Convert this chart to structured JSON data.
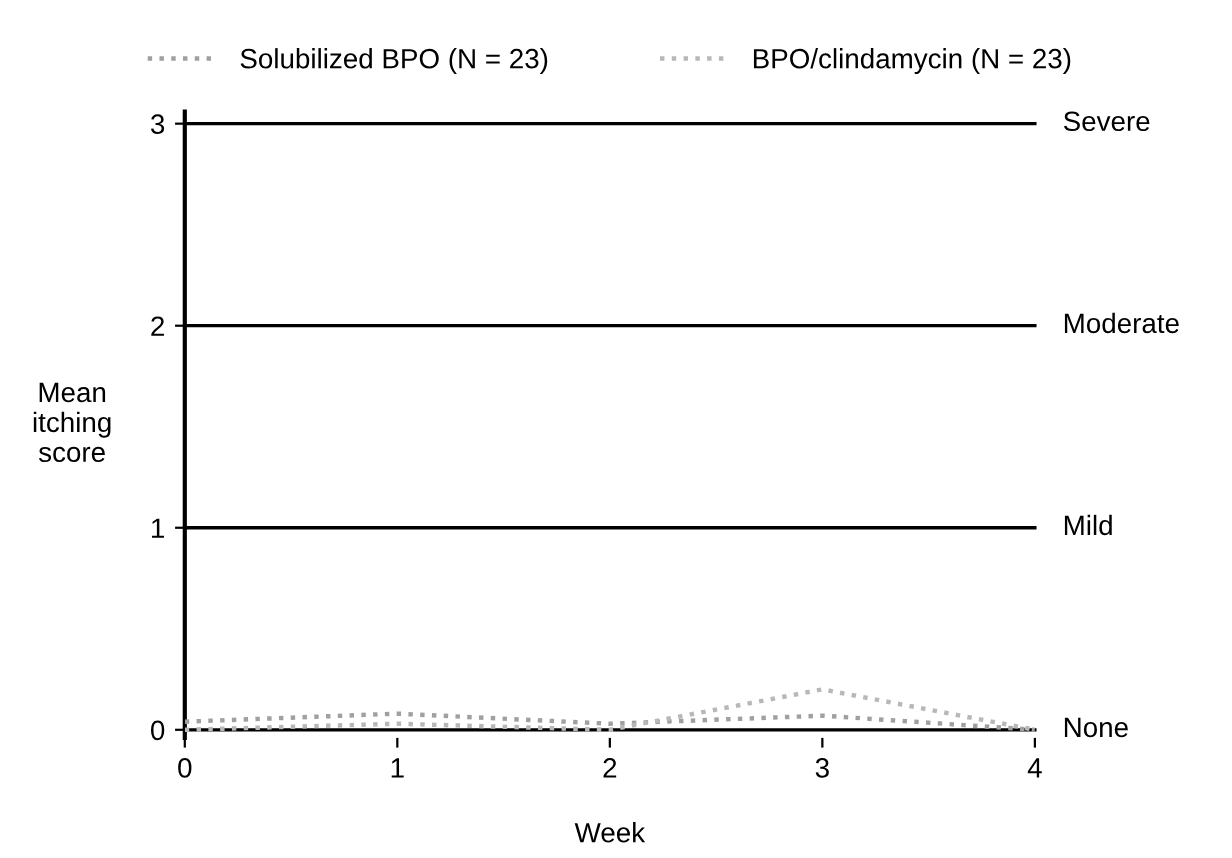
{
  "chart_data": {
    "type": "line",
    "xlabel": "Week",
    "ylabel": "Mean\nitching\nscore",
    "x": [
      0,
      1,
      2,
      3,
      4
    ],
    "series": [
      {
        "name": "Solubilized BPO (N = 23)",
        "color": "#a0a0a0",
        "values": [
          0.04,
          0.08,
          0.03,
          0.07,
          0.0
        ]
      },
      {
        "name": "BPO/clindamycin (N = 23)",
        "color": "#b8b8b8",
        "values": [
          0.0,
          0.03,
          0.0,
          0.2,
          0.0
        ]
      }
    ],
    "xlim": [
      0,
      4
    ],
    "xticks": [
      0,
      1,
      2,
      3,
      4
    ],
    "ylim": [
      -0.04,
      3.06
    ],
    "yticks": [
      0,
      1,
      2,
      3
    ],
    "ref_lines": [
      {
        "axis": "y",
        "value": 0,
        "label": "None",
        "color": "#000000"
      },
      {
        "axis": "y",
        "value": 1,
        "label": "Mild",
        "color": "#000000"
      },
      {
        "axis": "y",
        "value": 2,
        "label": "Moderate",
        "color": "#000000"
      },
      {
        "axis": "y",
        "value": 3,
        "label": "Severe",
        "color": "#000000"
      }
    ],
    "legend": "top",
    "line_style": "dotted",
    "marker": "none"
  }
}
